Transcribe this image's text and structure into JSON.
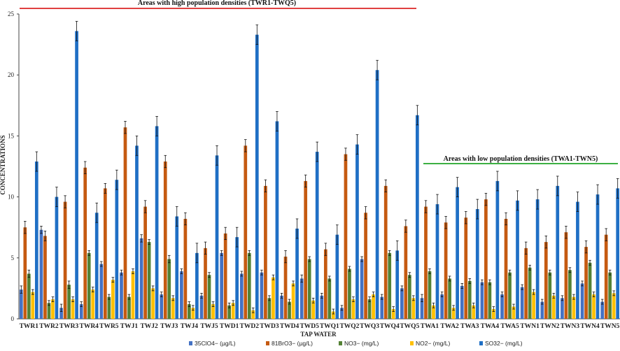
{
  "chart_data": {
    "type": "bar",
    "xlabel": "TAP WATER",
    "ylabel": "CONCENTRATIONS",
    "ylim": [
      0,
      25
    ],
    "yticks": [
      "0",
      "5",
      "10",
      "15",
      "20",
      "25"
    ],
    "grid": false,
    "legend_position": "bottom",
    "categories": [
      "TWR1",
      "TWR2",
      "TWR3",
      "TWR4",
      "TWR5",
      "TWJ1",
      "TWJ2",
      "TWJ3",
      "TWJ4",
      "TWJ5",
      "TWD1",
      "TWD2",
      "TWD3",
      "TWD4",
      "TWD5",
      "TWQ1",
      "TWQ2",
      "TWQ3",
      "TWQ4",
      "TWQ5",
      "TWA1",
      "TWA2",
      "TWA3",
      "TWA4",
      "TWA5",
      "TWN1",
      "TWN2",
      "TWN3",
      "TWN4",
      "TWN5"
    ],
    "series": [
      {
        "name": "35ClO4− (µg/L)",
        "color": "#4472C4",
        "values": [
          2.4,
          7.3,
          0.9,
          1.2,
          4.5,
          3.8,
          6.6,
          2.0,
          3.9,
          1.9,
          5.4,
          3.7,
          3.8,
          1.9,
          3.3,
          1.9,
          0.9,
          4.9,
          1.8,
          2.5,
          1.7,
          2.0,
          2.7,
          3.0,
          2.0,
          2.6,
          1.4,
          1.7,
          2.9,
          1.4
        ],
        "errors": [
          0.3,
          0.3,
          0.3,
          0.2,
          0.2,
          0.2,
          0.3,
          0.2,
          0.2,
          0.2,
          0.2,
          0.2,
          0.2,
          0.2,
          0.3,
          0.2,
          0.2,
          0.2,
          0.2,
          0.2,
          0.3,
          0.2,
          0.2,
          0.2,
          0.2,
          0.2,
          0.2,
          0.2,
          0.2,
          0.2
        ]
      },
      {
        "name": "81BrO3− (µg/L)",
        "color": "#C55A11",
        "values": [
          7.5,
          6.8,
          9.6,
          12.4,
          10.7,
          15.7,
          9.2,
          12.9,
          8.2,
          5.8,
          7.0,
          14.2,
          10.9,
          5.1,
          11.3,
          5.7,
          13.5,
          8.7,
          10.9,
          7.6,
          9.2,
          7.9,
          8.3,
          9.8,
          8.2,
          5.8,
          6.3,
          7.1,
          5.9,
          6.9
        ],
        "errors": [
          0.5,
          0.4,
          0.5,
          0.5,
          0.4,
          0.5,
          0.5,
          0.5,
          0.5,
          0.5,
          0.5,
          0.5,
          0.5,
          0.5,
          0.5,
          0.5,
          0.5,
          0.5,
          0.5,
          0.5,
          0.5,
          0.5,
          0.5,
          0.5,
          0.5,
          0.5,
          0.5,
          0.5,
          0.5,
          0.5
        ]
      },
      {
        "name": "NO3− (mg/L)",
        "color": "#548235",
        "values": [
          3.7,
          1.3,
          2.8,
          5.4,
          1.8,
          1.8,
          6.3,
          4.9,
          1.2,
          3.6,
          1.1,
          5.4,
          1.7,
          1.4,
          4.9,
          3.3,
          4.1,
          1.6,
          5.4,
          3.6,
          3.9,
          3.3,
          3.1,
          3.0,
          3.8,
          4.2,
          3.8,
          4.0,
          4.6,
          3.8
        ],
        "errors": [
          0.3,
          0.2,
          0.3,
          0.2,
          0.2,
          0.2,
          0.2,
          0.3,
          0.2,
          0.2,
          0.2,
          0.2,
          0.2,
          0.2,
          0.2,
          0.2,
          0.2,
          0.2,
          0.2,
          0.2,
          0.2,
          0.2,
          0.2,
          0.2,
          0.2,
          0.2,
          0.2,
          0.2,
          0.2,
          0.2
        ]
      },
      {
        "name": "NO2− (mg/L)",
        "color": "#FFC000",
        "values": [
          2.2,
          1.6,
          1.6,
          2.4,
          3.2,
          3.9,
          2.5,
          1.7,
          0.9,
          1.2,
          1.3,
          0.7,
          3.4,
          2.9,
          1.5,
          0.6,
          1.6,
          2.0,
          0.8,
          1.7,
          1.1,
          0.9,
          1.1,
          0.8,
          1.0,
          2.2,
          1.9,
          1.8,
          2.0,
          2.1
        ],
        "errors": [
          0.2,
          0.2,
          0.2,
          0.2,
          0.2,
          0.2,
          0.2,
          0.2,
          0.2,
          0.2,
          0.2,
          0.2,
          0.2,
          0.2,
          0.2,
          0.2,
          0.2,
          0.2,
          0.2,
          0.2,
          0.2,
          0.2,
          0.2,
          0.2,
          0.2,
          0.2,
          0.2,
          0.2,
          0.2,
          0.2
        ]
      },
      {
        "name": "SO32− (mg/L)",
        "color": "#1F6FC5",
        "values": [
          12.9,
          10.0,
          23.6,
          8.7,
          11.4,
          14.2,
          15.8,
          8.4,
          5.4,
          13.4,
          6.7,
          23.3,
          16.2,
          7.4,
          13.7,
          6.9,
          14.3,
          20.4,
          5.6,
          16.7,
          9.4,
          10.8,
          9.0,
          11.3,
          9.7,
          9.8,
          10.9,
          9.6,
          10.2,
          10.7
        ],
        "errors": [
          0.8,
          0.8,
          0.8,
          0.8,
          0.8,
          0.8,
          0.8,
          0.8,
          0.8,
          0.8,
          0.8,
          0.8,
          0.8,
          0.8,
          0.8,
          0.8,
          0.8,
          0.8,
          0.8,
          0.8,
          0.8,
          0.8,
          0.8,
          0.8,
          0.8,
          0.8,
          0.8,
          0.8,
          0.8,
          0.8
        ]
      }
    ],
    "annotations": [
      {
        "text": "Areas with high population densities (TWR1-TWQ5)",
        "line_color": "#E04040"
      },
      {
        "text": "Areas with low population densities (TWA1-TWN5)",
        "line_color": "#3CB043"
      }
    ]
  }
}
